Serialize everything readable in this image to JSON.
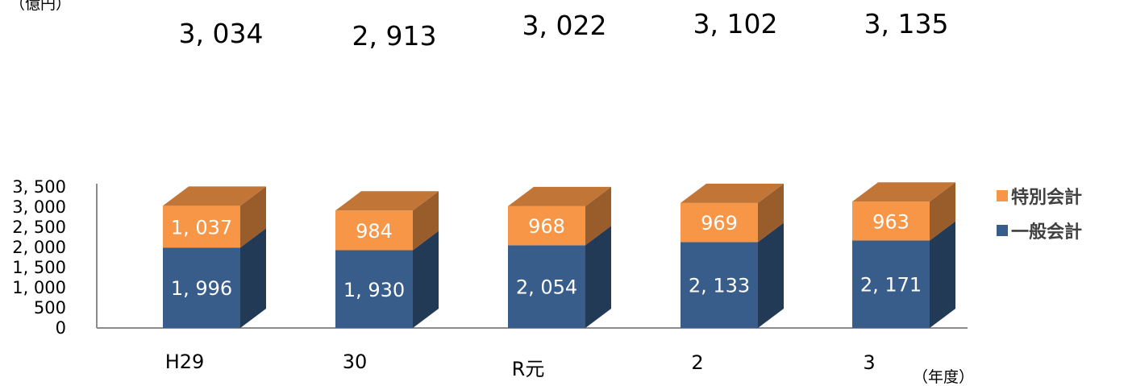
{
  "chart_data": {
    "type": "bar",
    "stacked": true,
    "three_d": true,
    "categories": [
      "H29",
      "30",
      "R元",
      "2",
      "3"
    ],
    "series": [
      {
        "name": "一般会計",
        "values": [
          1996,
          1930,
          2054,
          2133,
          2171
        ],
        "labels": [
          "1, 996",
          "1, 930",
          "2, 054",
          "2, 133",
          "2, 171"
        ],
        "color": "#385D8A"
      },
      {
        "name": "特別会計",
        "values": [
          1037,
          984,
          968,
          969,
          963
        ],
        "labels": [
          "1, 037",
          "984",
          "968",
          "969",
          "963"
        ],
        "color": "#F79646"
      }
    ],
    "totals": [
      "3, 034",
      "2, 913",
      "3, 022",
      "3, 102",
      "3, 135"
    ],
    "ylim": [
      0,
      3500
    ],
    "yticks": [
      0,
      500,
      1000,
      1500,
      2000,
      2500,
      3000,
      3500
    ],
    "ytick_labels": [
      "0",
      "500",
      "1, 000",
      "1, 500",
      "2, 000",
      "2, 500",
      "3, 000",
      "3, 500"
    ],
    "ylabel": "（億円）",
    "xlabel": "（年度）",
    "grid": false,
    "legend": "right"
  }
}
